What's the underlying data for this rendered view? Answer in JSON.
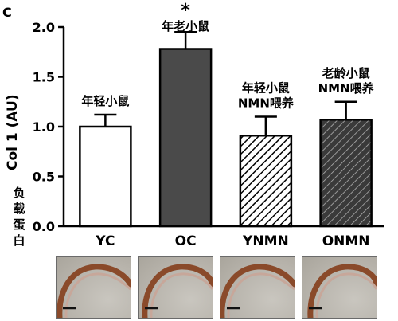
{
  "panel_label": "C",
  "ylabel_en": "Col 1 (AU)",
  "ylabel_cn": "负载蛋白",
  "colors": {
    "OC": "#4a4a4a",
    "ONMN": "#3a3a3a",
    "stroke": "#000000"
  },
  "chart_data": {
    "type": "bar",
    "categories": [
      "YC",
      "OC",
      "YNMN",
      "ONMN"
    ],
    "values": [
      1.0,
      1.78,
      0.91,
      1.07
    ],
    "errors": [
      0.12,
      0.17,
      0.19,
      0.18
    ],
    "fills": [
      "white",
      "dark-gray",
      "hatched",
      "dark-hatched"
    ],
    "bar_labels": [
      [
        "年轻小鼠"
      ],
      [
        "年老小鼠"
      ],
      [
        "年轻小鼠",
        "NMN喂养"
      ],
      [
        "老龄小鼠",
        "NMN喂养"
      ]
    ],
    "significance": [
      "",
      "*",
      "",
      ""
    ],
    "ylim": [
      0,
      2.0
    ],
    "yticks": [
      "0.0",
      "0.5",
      "1.0",
      "1.5",
      "2.0"
    ]
  },
  "thumbnails": [
    {
      "name": "YC"
    },
    {
      "name": "OC"
    },
    {
      "name": "YNMN"
    },
    {
      "name": "ONMN"
    }
  ]
}
